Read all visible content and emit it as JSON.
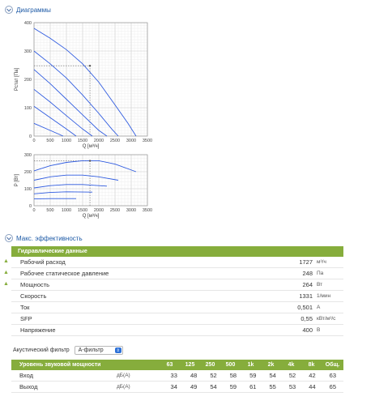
{
  "sections": {
    "diagrams_title": "Диаграммы",
    "efficiency_title": "Макс. эффективность"
  },
  "chart_data": [
    {
      "type": "line",
      "xlabel": "Q [м³/ч]",
      "ylabel": "Pстат [Па]",
      "xlim": [
        0,
        3500
      ],
      "ylim": [
        0,
        400
      ],
      "xticks": [
        "0",
        "500",
        "1000",
        "1500",
        "2000",
        "2500",
        "3000",
        "3500"
      ],
      "yticks": [
        "0",
        "100",
        "200",
        "300",
        "400"
      ],
      "grid": true,
      "operating_point": {
        "x": 1727,
        "y": 248
      },
      "series": [
        {
          "x": [
            0,
            500,
            1000,
            1500,
            2000,
            2500,
            2900,
            3150
          ],
          "y": [
            380,
            345,
            305,
            255,
            190,
            110,
            45,
            0
          ]
        },
        {
          "x": [
            0,
            500,
            1000,
            1500,
            2000,
            2400,
            2600
          ],
          "y": [
            300,
            255,
            205,
            145,
            80,
            25,
            0
          ]
        },
        {
          "x": [
            0,
            500,
            1000,
            1500,
            2000,
            2250
          ],
          "y": [
            235,
            185,
            130,
            75,
            20,
            0
          ]
        },
        {
          "x": [
            0,
            500,
            1000,
            1500,
            1800
          ],
          "y": [
            165,
            120,
            72,
            25,
            0
          ]
        },
        {
          "x": [
            0,
            500,
            1000,
            1300
          ],
          "y": [
            105,
            65,
            25,
            0
          ]
        },
        {
          "x": [
            0,
            500,
            900
          ],
          "y": [
            45,
            20,
            0
          ]
        }
      ]
    },
    {
      "type": "line",
      "xlabel": "Q [м³/ч]",
      "ylabel": "P [Вт]",
      "xlim": [
        0,
        3500
      ],
      "ylim": [
        0,
        300
      ],
      "xticks": [
        "0",
        "500",
        "1000",
        "1500",
        "2000",
        "2500",
        "3000",
        "3500"
      ],
      "yticks": [
        "0",
        "100",
        "200",
        "300"
      ],
      "grid": true,
      "operating_point": {
        "x": 1727,
        "y": 264
      },
      "series": [
        {
          "x": [
            0,
            500,
            1000,
            1500,
            2000,
            2500,
            3150
          ],
          "y": [
            205,
            235,
            255,
            265,
            265,
            245,
            200
          ]
        },
        {
          "x": [
            0,
            500,
            1000,
            1500,
            2000,
            2600
          ],
          "y": [
            150,
            170,
            180,
            180,
            170,
            150
          ]
        },
        {
          "x": [
            0,
            500,
            1000,
            1500,
            2250
          ],
          "y": [
            105,
            118,
            125,
            125,
            115
          ]
        },
        {
          "x": [
            0,
            500,
            1000,
            1800
          ],
          "y": [
            70,
            78,
            82,
            80
          ]
        },
        {
          "x": [
            0,
            500,
            1300
          ],
          "y": [
            40,
            42,
            42
          ]
        }
      ]
    }
  ],
  "hydraulic": {
    "header": "Гидравлические данные",
    "rows": [
      {
        "label": "Рабочий расход",
        "value": "1727",
        "unit": "м³/ч",
        "marked": true
      },
      {
        "label": "Рабочее статическое давление",
        "value": "248",
        "unit": "Па",
        "marked": true
      },
      {
        "label": "Мощность",
        "value": "264",
        "unit": "Вт",
        "marked": true
      },
      {
        "label": "Скорость",
        "value": "1331",
        "unit": "1/мин",
        "marked": false
      },
      {
        "label": "Ток",
        "value": "0,501",
        "unit": "A",
        "marked": false
      },
      {
        "label": "SFP",
        "value": "0,55",
        "unit": "кВт/м³/с",
        "marked": false
      },
      {
        "label": "Напряжение",
        "value": "400",
        "unit": "В",
        "marked": false
      }
    ],
    "mark_symbol": "▲"
  },
  "filter": {
    "label": "Акустический фильтр",
    "value": "А-фильтр"
  },
  "sound": {
    "header_label": "Уровень звуковой мощности",
    "bands": [
      "63",
      "125",
      "250",
      "500",
      "1k",
      "2k",
      "4k",
      "8k",
      "Общ."
    ],
    "rows": [
      {
        "label": "Вход",
        "unit": "дБ(А)",
        "values": [
          "33",
          "48",
          "52",
          "58",
          "59",
          "54",
          "52",
          "42",
          "63"
        ]
      },
      {
        "label": "Выход",
        "unit": "дБ(А)",
        "values": [
          "34",
          "49",
          "54",
          "59",
          "61",
          "55",
          "53",
          "44",
          "65"
        ]
      }
    ]
  },
  "colors": {
    "accent_green": "#86ad3c",
    "curve_blue": "#2f5be0",
    "title_blue": "#1d5aa6"
  }
}
